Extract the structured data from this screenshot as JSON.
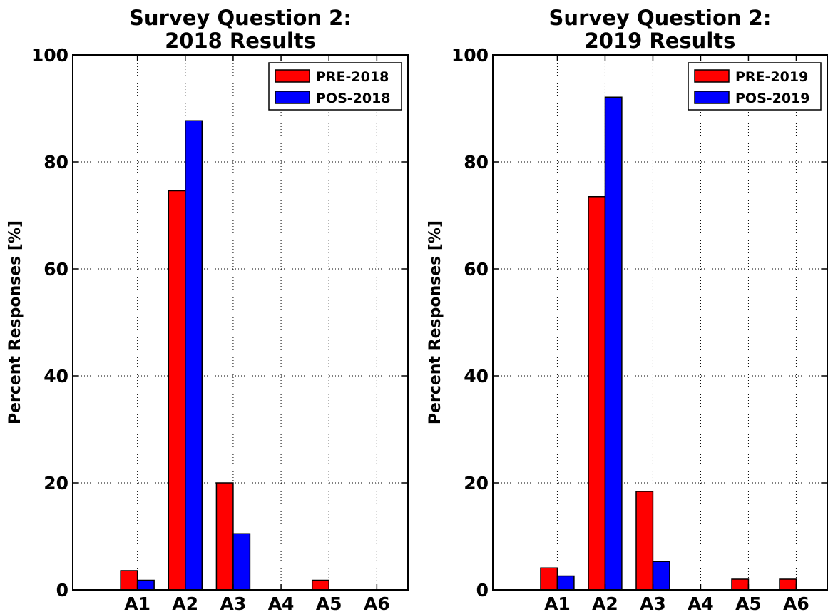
{
  "colors": {
    "pre": "#ff0000",
    "pos": "#0000ff",
    "axis": "#000000",
    "grid": "#000000",
    "background": "#ffffff"
  },
  "chart_data": [
    {
      "type": "bar",
      "title_line1": "Survey Question 2:",
      "title_line2": "2018 Results",
      "xlabel": "",
      "ylabel": "Percent Responses [%]",
      "categories": [
        "A1",
        "A2",
        "A3",
        "A4",
        "A5",
        "A6"
      ],
      "series": [
        {
          "name": "PRE-2018",
          "values": [
            3.6,
            74.6,
            20.0,
            0.0,
            1.8,
            0.0
          ]
        },
        {
          "name": "POS-2018",
          "values": [
            1.8,
            87.7,
            10.5,
            0.0,
            0.0,
            0.0
          ]
        }
      ],
      "ylim": [
        0,
        100
      ],
      "yticks": [
        0,
        20,
        40,
        60,
        80,
        100
      ],
      "grid": true,
      "legend_position": "top-right"
    },
    {
      "type": "bar",
      "title_line1": "Survey Question 2:",
      "title_line2": "2019 Results",
      "xlabel": "",
      "ylabel": "Percent Responses [%]",
      "categories": [
        "A1",
        "A2",
        "A3",
        "A4",
        "A5",
        "A6"
      ],
      "series": [
        {
          "name": "PRE-2019",
          "values": [
            4.1,
            73.5,
            18.4,
            0.0,
            2.0,
            2.0
          ]
        },
        {
          "name": "POS-2019",
          "values": [
            2.6,
            92.1,
            5.3,
            0.0,
            0.0,
            0.0
          ]
        }
      ],
      "ylim": [
        0,
        100
      ],
      "yticks": [
        0,
        20,
        40,
        60,
        80,
        100
      ],
      "grid": true,
      "legend_position": "top-right"
    }
  ]
}
